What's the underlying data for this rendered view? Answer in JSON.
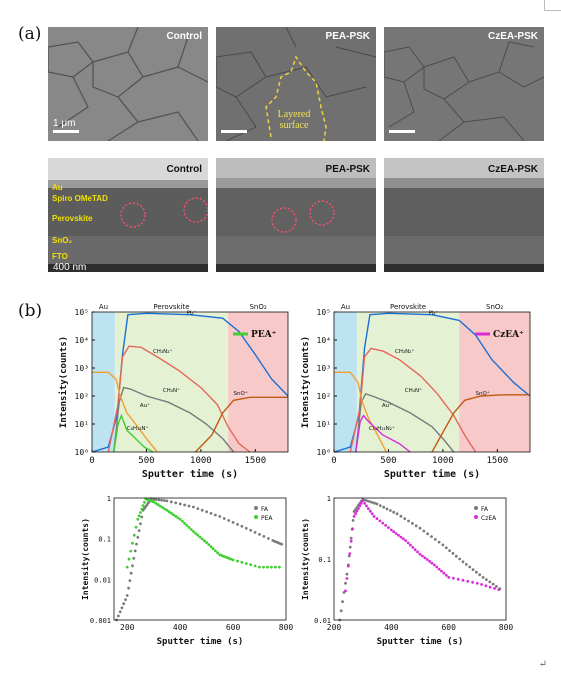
{
  "panel_a_label": "(a)",
  "panel_b_label": "(b)",
  "sem_top": [
    {
      "label": "Control",
      "scale": "1 μm",
      "tone": "#8c8c8c"
    },
    {
      "label": "PEA-PSK",
      "annotation": "Layered surface",
      "tone": "#777777"
    },
    {
      "label": "CzEA-PSK",
      "tone": "#7a7a7a"
    }
  ],
  "sem_bottom": [
    {
      "label": "Control",
      "scale": "400 nm",
      "layers": [
        "Au",
        "Spiro OMeTAD",
        "Perovskite",
        "SnO₂",
        "FTO"
      ]
    },
    {
      "label": "PEA-PSK"
    },
    {
      "label": "CzEA-PSK"
    }
  ],
  "chart_data": [
    {
      "type": "line",
      "xlabel": "Sputter time (s)",
      "ylabel": "Intensity(counts)",
      "xlim": [
        0,
        1800
      ],
      "ylim_log": [
        1,
        100000
      ],
      "xticks": [
        "0",
        "500",
        "1000",
        "1500"
      ],
      "yticks": [
        "10⁰",
        "10¹",
        "10²",
        "10³",
        "10⁴",
        "10⁵"
      ],
      "regions": [
        {
          "name": "Au",
          "from": 0,
          "to": 210,
          "color": "#bde3f2"
        },
        {
          "name": "Perovskite",
          "from": 210,
          "to": 1250,
          "color": "#e4f1d2"
        },
        {
          "name": "SnO₂",
          "from": 1250,
          "to": 1800,
          "color": "#f7c9c8"
        }
      ],
      "legend": "PEA⁺",
      "series": [
        {
          "name": "Pb⁺",
          "color": "#1a6fd6",
          "points": [
            [
              0,
              1
            ],
            [
              150,
              1.5
            ],
            [
              230,
              20
            ],
            [
              280,
              3000
            ],
            [
              330,
              80000
            ],
            [
              500,
              90000
            ],
            [
              900,
              80000
            ],
            [
              1200,
              60000
            ],
            [
              1350,
              20000
            ],
            [
              1500,
              3000
            ],
            [
              1650,
              400
            ],
            [
              1800,
              100
            ]
          ]
        },
        {
          "name": "CH₃N₂⁺",
          "color": "#e8665c",
          "points": [
            [
              150,
              1
            ],
            [
              240,
              50
            ],
            [
              280,
              2500
            ],
            [
              340,
              6000
            ],
            [
              450,
              5500
            ],
            [
              600,
              2500
            ],
            [
              800,
              800
            ],
            [
              1000,
              200
            ],
            [
              1150,
              50
            ],
            [
              1250,
              8
            ],
            [
              1350,
              2
            ],
            [
              1450,
              1
            ]
          ]
        },
        {
          "name": "CH₄N⁺",
          "color": "#7a7a7a",
          "points": [
            [
              200,
              1
            ],
            [
              250,
              60
            ],
            [
              290,
              200
            ],
            [
              350,
              180
            ],
            [
              500,
              100
            ],
            [
              700,
              60
            ],
            [
              900,
              25
            ],
            [
              1050,
              10
            ],
            [
              1200,
              3
            ],
            [
              1300,
              1
            ]
          ]
        },
        {
          "name": "Au⁺",
          "color": "#f0a030",
          "points": [
            [
              0,
              700
            ],
            [
              150,
              700
            ],
            [
              220,
              400
            ],
            [
              260,
              100
            ],
            [
              320,
              25
            ],
            [
              420,
              8
            ],
            [
              500,
              3
            ],
            [
              600,
              1
            ]
          ]
        },
        {
          "name": "C₈H₁₂N⁺",
          "color": "#3ecf2e",
          "points": [
            [
              200,
              1
            ],
            [
              240,
              10
            ],
            [
              270,
              20
            ],
            [
              320,
              6
            ],
            [
              400,
              3
            ],
            [
              480,
              1.5
            ],
            [
              560,
              1
            ]
          ]
        },
        {
          "name": "SnO⁺",
          "color": "#c25a15",
          "points": [
            [
              950,
              1
            ],
            [
              1100,
              4
            ],
            [
              1200,
              25
            ],
            [
              1300,
              70
            ],
            [
              1450,
              90
            ],
            [
              1600,
              90
            ],
            [
              1800,
              90
            ]
          ]
        }
      ],
      "annotations": [
        "Pb⁺",
        "CH₃N₂⁺",
        "CH₄N⁺",
        "Au⁺",
        "SnO⁺",
        "C₈H₁₂N⁺"
      ]
    },
    {
      "type": "line",
      "xlabel": "Sputter time (s)",
      "ylabel": "Intensity(counts)",
      "xlim": [
        0,
        1800
      ],
      "ylim_log": [
        1,
        100000
      ],
      "xticks": [
        "0",
        "500",
        "1000",
        "1500"
      ],
      "yticks": [
        "10⁰",
        "10¹",
        "10²",
        "10³",
        "10⁴",
        "10⁵"
      ],
      "regions": [
        {
          "name": "Au",
          "from": 0,
          "to": 210,
          "color": "#bde3f2"
        },
        {
          "name": "Perovskite",
          "from": 210,
          "to": 1150,
          "color": "#e4f1d2"
        },
        {
          "name": "SnO₂",
          "from": 1150,
          "to": 1800,
          "color": "#f7c9c8"
        }
      ],
      "legend": "CzEA⁺",
      "series": [
        {
          "name": "Pb⁺",
          "color": "#1a6fd6",
          "points": [
            [
              0,
              1
            ],
            [
              150,
              1.5
            ],
            [
              230,
              20
            ],
            [
              280,
              5000
            ],
            [
              330,
              80000
            ],
            [
              500,
              90000
            ],
            [
              900,
              80000
            ],
            [
              1150,
              50000
            ],
            [
              1300,
              15000
            ],
            [
              1450,
              2000
            ],
            [
              1650,
              300
            ],
            [
              1800,
              100
            ]
          ]
        },
        {
          "name": "CH₃N₂⁺",
          "color": "#e8665c",
          "points": [
            [
              150,
              1
            ],
            [
              240,
              40
            ],
            [
              280,
              2500
            ],
            [
              340,
              5000
            ],
            [
              450,
              4000
            ],
            [
              600,
              2000
            ],
            [
              800,
              500
            ],
            [
              950,
              120
            ],
            [
              1100,
              20
            ],
            [
              1200,
              4
            ],
            [
              1300,
              1
            ]
          ]
        },
        {
          "name": "CH₄N⁺",
          "color": "#7a7a7a",
          "points": [
            [
              200,
              1
            ],
            [
              250,
              60
            ],
            [
              290,
              120
            ],
            [
              350,
              100
            ],
            [
              500,
              60
            ],
            [
              700,
              25
            ],
            [
              900,
              8
            ],
            [
              1000,
              3
            ],
            [
              1100,
              1
            ]
          ]
        },
        {
          "name": "Au⁺",
          "color": "#f0a030",
          "points": [
            [
              0,
              700
            ],
            [
              150,
              700
            ],
            [
              220,
              300
            ],
            [
              260,
              60
            ],
            [
              320,
              15
            ],
            [
              400,
              4
            ],
            [
              480,
              1
            ]
          ]
        },
        {
          "name": "C₁₄H₁₃N₂⁺",
          "color": "#d92ad9",
          "points": [
            [
              200,
              1
            ],
            [
              240,
              12
            ],
            [
              270,
              20
            ],
            [
              320,
              12
            ],
            [
              450,
              4
            ],
            [
              600,
              2
            ],
            [
              700,
              1
            ]
          ]
        },
        {
          "name": "SnO⁺",
          "color": "#c25a15",
          "points": [
            [
              900,
              1
            ],
            [
              1000,
              5
            ],
            [
              1100,
              25
            ],
            [
              1200,
              70
            ],
            [
              1350,
              100
            ],
            [
              1550,
              110
            ],
            [
              1800,
              110
            ]
          ]
        }
      ],
      "annotations": [
        "Pb⁺",
        "CH₃N₂⁺",
        "CH₄N⁺",
        "Au⁺",
        "SnO⁺",
        "C₁₄H₁₃N₂⁺"
      ]
    },
    {
      "type": "scatter",
      "xlabel": "Sputter time (s)",
      "ylabel": "Intensity(counts)",
      "xlim": [
        150,
        800
      ],
      "ylim_log": [
        0.001,
        1
      ],
      "xticks": [
        "200",
        "400",
        "600",
        "800"
      ],
      "yticks": [
        "0.001",
        "0.01",
        "0.1",
        "1"
      ],
      "series": [
        {
          "name": "FA",
          "color": "#7a7a7a",
          "points": [
            [
              160,
              0.001
            ],
            [
              200,
              0.004
            ],
            [
              230,
              0.05
            ],
            [
              260,
              0.5
            ],
            [
              290,
              0.95
            ],
            [
              350,
              0.85
            ],
            [
              450,
              0.6
            ],
            [
              550,
              0.35
            ],
            [
              650,
              0.18
            ],
            [
              750,
              0.09
            ],
            [
              790,
              0.07
            ]
          ]
        },
        {
          "name": "PEA",
          "color": "#3ecf2e",
          "points": [
            [
              200,
              0.02
            ],
            [
              240,
              0.3
            ],
            [
              270,
              0.95
            ],
            [
              300,
              0.8
            ],
            [
              350,
              0.5
            ],
            [
              400,
              0.3
            ],
            [
              450,
              0.15
            ],
            [
              500,
              0.08
            ],
            [
              550,
              0.04
            ],
            [
              600,
              0.03
            ],
            [
              700,
              0.02
            ],
            [
              790,
              0.02
            ]
          ]
        }
      ]
    },
    {
      "type": "scatter",
      "xlabel": "Sputter time (s)",
      "ylabel": "Intensity(counts)",
      "xlim": [
        200,
        800
      ],
      "ylim_log": [
        0.01,
        1
      ],
      "xticks": [
        "200",
        "400",
        "600",
        "800"
      ],
      "yticks": [
        "0.01",
        "0.1",
        "1"
      ],
      "series": [
        {
          "name": "FA",
          "color": "#7a7a7a",
          "points": [
            [
              220,
              0.01
            ],
            [
              250,
              0.08
            ],
            [
              270,
              0.6
            ],
            [
              300,
              0.95
            ],
            [
              350,
              0.8
            ],
            [
              420,
              0.55
            ],
            [
              500,
              0.32
            ],
            [
              580,
              0.17
            ],
            [
              650,
              0.09
            ],
            [
              720,
              0.05
            ],
            [
              790,
              0.03
            ]
          ]
        },
        {
          "name": "CzEA",
          "color": "#d92ad9",
          "points": [
            [
              240,
              0.03
            ],
            [
              270,
              0.5
            ],
            [
              300,
              0.9
            ],
            [
              340,
              0.5
            ],
            [
              400,
              0.3
            ],
            [
              450,
              0.2
            ],
            [
              500,
              0.12
            ],
            [
              550,
              0.08
            ],
            [
              600,
              0.05
            ],
            [
              700,
              0.04
            ],
            [
              790,
              0.03
            ]
          ]
        }
      ]
    }
  ],
  "footer_mark": "↵"
}
